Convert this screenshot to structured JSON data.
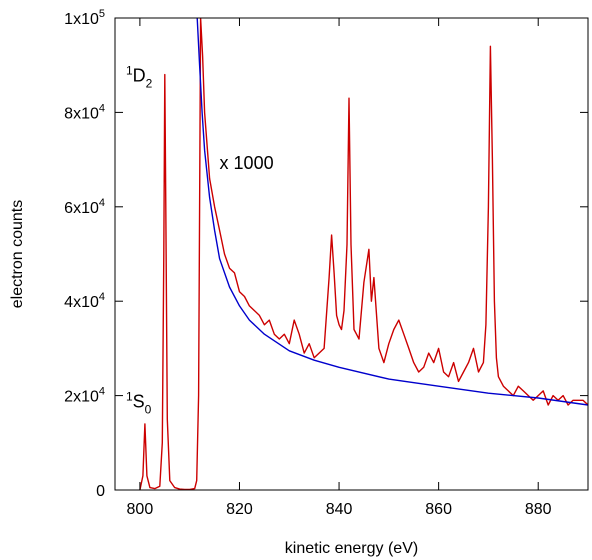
{
  "chart_data": {
    "type": "line",
    "xlabel": "kinetic energy (eV)",
    "ylabel": "electron counts",
    "xlim": [
      795,
      890
    ],
    "ylim": [
      0,
      100000
    ],
    "grid": false,
    "x_ticks": [
      {
        "value": 800,
        "label": "800"
      },
      {
        "value": 820,
        "label": "820"
      },
      {
        "value": 840,
        "label": "840"
      },
      {
        "value": 860,
        "label": "860"
      },
      {
        "value": 880,
        "label": "880"
      }
    ],
    "y_ticks": [
      {
        "value": 0,
        "mant": "0",
        "exp": ""
      },
      {
        "value": 20000,
        "mant": "2x10",
        "exp": "4"
      },
      {
        "value": 40000,
        "mant": "4x10",
        "exp": "4"
      },
      {
        "value": 60000,
        "mant": "6x10",
        "exp": "4"
      },
      {
        "value": 80000,
        "mant": "8x10",
        "exp": "4"
      },
      {
        "value": 100000,
        "mant": "1x10",
        "exp": "5"
      }
    ],
    "series": [
      {
        "color": "#cc0000",
        "description": "measured spectrum; region above ~811 eV scaled by 1000",
        "x": [
          800,
          800.6,
          801,
          801.4,
          802,
          803,
          804,
          804.5,
          804.8,
          805,
          805.2,
          805.5,
          806,
          807,
          808,
          809,
          810,
          811,
          811.4,
          811.8,
          812.2,
          812.6,
          813,
          813.5,
          814,
          815,
          816,
          817,
          818,
          819,
          820,
          821,
          822,
          823,
          824,
          825,
          826,
          827,
          828,
          829,
          830,
          831,
          832,
          833,
          834,
          835,
          836,
          837,
          838,
          838.5,
          839,
          839.5,
          840,
          840.5,
          841,
          841.6,
          842,
          842.4,
          843,
          843.5,
          844,
          845,
          846,
          846.5,
          847,
          848,
          849,
          850,
          851,
          852,
          853,
          854,
          855,
          856,
          857,
          858,
          859,
          860,
          861,
          862,
          863,
          864,
          865,
          866,
          867,
          868,
          869,
          869.5,
          870,
          870.4,
          870.8,
          871.2,
          871.6,
          872,
          873,
          874,
          875,
          876,
          877,
          878,
          879,
          880,
          881,
          882,
          883,
          884,
          885,
          886,
          887,
          888,
          889,
          890
        ],
        "y": [
          0,
          3000,
          14000,
          3000,
          500,
          300,
          800,
          10000,
          50000,
          88000,
          60000,
          15000,
          2000,
          500,
          200,
          100,
          100,
          300,
          2000,
          20000,
          100000,
          92000,
          80000,
          73000,
          66000,
          60000,
          55000,
          50000,
          47000,
          46000,
          42000,
          41000,
          39000,
          38000,
          37000,
          35000,
          36000,
          33000,
          32000,
          33000,
          31000,
          36000,
          33000,
          29000,
          31000,
          28000,
          29000,
          30000,
          45000,
          54000,
          46000,
          37000,
          35000,
          34000,
          38000,
          52000,
          83000,
          52000,
          34000,
          33000,
          32000,
          44000,
          51000,
          40000,
          45000,
          30000,
          27000,
          31000,
          34000,
          36000,
          33000,
          30000,
          27000,
          25000,
          26000,
          29000,
          27000,
          30000,
          25000,
          24000,
          27000,
          23000,
          25000,
          27000,
          30000,
          25000,
          27000,
          35000,
          60000,
          94000,
          70000,
          40000,
          28000,
          24000,
          22000,
          21000,
          20000,
          22000,
          21000,
          20000,
          19000,
          20000,
          21000,
          18000,
          20000,
          19000,
          20000,
          18000,
          19000,
          19000,
          19000,
          18000
        ]
      },
      {
        "color": "#0000cc",
        "description": "background fit",
        "x": [
          811.5,
          812,
          812.5,
          813,
          814,
          815,
          816,
          818,
          820,
          822,
          825,
          830,
          835,
          840,
          850,
          860,
          870,
          880,
          890
        ],
        "y": [
          100000,
          90000,
          80000,
          72000,
          62000,
          55000,
          49000,
          43000,
          39000,
          36000,
          33000,
          29500,
          27500,
          26000,
          23500,
          22000,
          20500,
          19500,
          18000
        ]
      }
    ],
    "annotations": [
      {
        "id": "d2",
        "term": "D",
        "super": "1",
        "sub": "2",
        "x": 797.2,
        "y": 86500
      },
      {
        "id": "s0",
        "term": "S",
        "super": "1",
        "sub": "0",
        "x": 797.2,
        "y": 17500
      },
      {
        "id": "x1000",
        "text": "x 1000",
        "x": 816,
        "y": 68000
      }
    ]
  }
}
